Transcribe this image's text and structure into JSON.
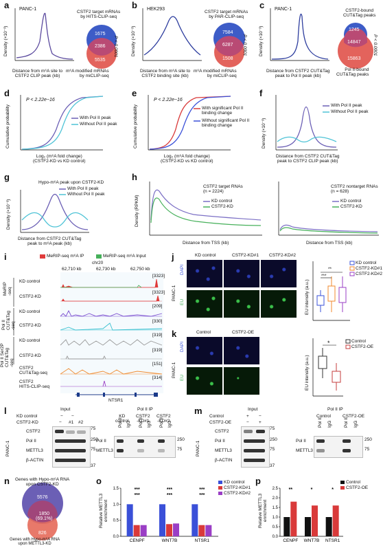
{
  "panels": {
    "a": {
      "label": "a",
      "cell": "PANC-1",
      "ylabel": "Density (×10⁻³)",
      "xlabel": "Distance from m⁶A site to\nCSTF2 CLIP peak (kb)",
      "venn_top": "CSTF2 target mRNAs\nby HITS-CLIP-seq",
      "venn_bottom": "m⁶A modified mRNAs\nby miCLIP-seq",
      "n1": "1675",
      "n2": "2386",
      "n3": "5535",
      "p": "P < 0.0001"
    },
    "b": {
      "label": "b",
      "cell": "HEK293",
      "ylabel": "Density (×10⁻³)",
      "xlabel": "Distance from m⁶A site to\nCSTF2 binding site (kb)",
      "venn_top": "CSTF2 target mRNAs\nby PAR-CLIP-seq",
      "venn_bottom": "m⁶A modified mRNAs\nby miCLIP-seq",
      "n1": "7584",
      "n2": "6287",
      "n3": "1508",
      "p": "P < 0.0001"
    },
    "c": {
      "label": "c",
      "cell": "PANC-1",
      "ylabel": "Density (×10⁻³)",
      "xlabel": "Distance from CSTF2 CUT&Tag\npeak to Pol II peak (kb)",
      "venn_top": "CSTF2-bound\nCUT&Tag peaks",
      "venn_bottom": "Pol II-bound\nCUT&Tag peaks",
      "n1": "1245",
      "n2": "14847",
      "n3": "15863",
      "p": "P < 0.0001"
    },
    "d": {
      "label": "d",
      "p": "P < 2.22e−16",
      "s1": "With Pol II peak",
      "s2": "Without Pol II peak",
      "ylabel": "Cumulative probability",
      "xlabel": "Log₂ (m⁶A fold change)\n(CSTF2-KD vs KD control)"
    },
    "e": {
      "label": "e",
      "p": "P < 2.22e−16",
      "s1": "With significant Pol II\nbinding change",
      "s2": "Without significant Pol II\nbinding change",
      "ylabel": "Cumulative probability",
      "xlabel": "Log₂ (m⁶A fold change)\n(CSTF2-KD vs KD control)"
    },
    "f": {
      "label": "f",
      "s1": "With Pol II peak",
      "s2": "Without Pol II peak",
      "ylabel": "Density (×10⁻³)",
      "xlabel": "Distance from CSTF2 CUT&Tag\npeak to CSTF2 CLIP peak (kb)"
    },
    "g": {
      "label": "g",
      "title": "Hypo-m⁶A peak upon CSTF2-KD",
      "s1": "With Pol II peak",
      "s2": "Without Pol II peak",
      "ylabel": "Density (×10⁻³)",
      "xlabel": "Distance from CSTF2 CUT&Tag\npeak to m⁶A peak (kb)"
    },
    "h": {
      "label": "h",
      "t1": "CSTF2 target RNAs\n(n = 2224)",
      "t2": "CSTF2 nontarget RNAs\n(n = 628)",
      "s1": "KD control",
      "s2": "CSTF2-KD",
      "ylabel": "Density (RPKM)",
      "xlabel": "Distance from TSS (kb)"
    },
    "i": {
      "label": "i",
      "leg1": "MeRIP-seq m⁶A IP",
      "leg2": "MeRIP-seq m⁶A Input",
      "chr": "chr20",
      "pos1": "62,710 kb",
      "pos2": "62,730 kb",
      "pos3": "62,750 kb",
      "gene": "NTSR1",
      "tracks": [
        {
          "group": "MeRIP\n-seq",
          "name": "KD control",
          "range": "[3323]"
        },
        {
          "group": "",
          "name": "CSTF2-KD",
          "range": "[3323]"
        },
        {
          "group": "Pol II\nCUT&Tag\n-seq",
          "name": "KD control",
          "range": "[209]"
        },
        {
          "group": "",
          "name": "CSTF2-KD",
          "range": "[330]"
        },
        {
          "group": "Pol II Ser2P\nCUT&Tag\n-seq",
          "name": "KD control",
          "range": "[319]"
        },
        {
          "group": "",
          "name": "CSTF2-KD",
          "range": "[319]"
        },
        {
          "group": "",
          "name": "CSTF2\nCUT&Tag-seq",
          "range": "[151]"
        },
        {
          "group": "",
          "name": "CSTF2\nHITS-CLIP-seq",
          "range": "[314]"
        }
      ]
    },
    "j": {
      "label": "j",
      "cols": [
        "KD control",
        "CSTF2-KD#1",
        "CSTF2-KD#2"
      ],
      "rows": [
        "DAPI",
        "EU"
      ],
      "cell": "PANC-1",
      "ylabel": "EU intensity (a.u.)",
      "legend": [
        "KD control",
        "CSTF2-KD#1",
        "CSTF2-KD#2"
      ],
      "sig1": "**",
      "sig2": "***"
    },
    "k": {
      "label": "k",
      "cols": [
        "Control",
        "CSTF2-OE"
      ],
      "rows": [
        "DAPI",
        "EU"
      ],
      "cell": "PANC-1",
      "ylabel": "EU intensity (a.u.)",
      "legend": [
        "Control",
        "CSTF2-OE"
      ],
      "sig": "*"
    },
    "l": {
      "label": "l",
      "input": "Input",
      "ip": "Pol II  IP",
      "kdctrl": "KD control",
      "kd": "CSTF2-KD",
      "m": "−",
      "p1": "#1",
      "p2": "#2",
      "cell": "PANC-1",
      "rows": [
        "CSTF2",
        "Pol II",
        "METTL3",
        "β-ACTIN"
      ],
      "mw": [
        "75",
        "250",
        "75",
        "37"
      ],
      "ipcols": [
        "KD\ncontrol",
        "CSTF2\n-KD#1",
        "CSTF2\n-KD#2"
      ],
      "ab": [
        "Pol II",
        "IgG"
      ],
      "iprows": [
        "Pol II",
        "METTL3"
      ],
      "ipmw": [
        "250",
        "75"
      ]
    },
    "m": {
      "label": "m",
      "input": "Input",
      "ip": "Pol II  IP",
      "ctrl": "Control",
      "oe": "CSTF2-OE",
      "plus": "+",
      "m": "−",
      "cell": "PANC-1",
      "rows": [
        "CSTF2",
        "Pol II",
        "METTL3",
        "β-ACTIN"
      ],
      "mw": [
        "75",
        "250",
        "75",
        "37"
      ],
      "ipcols": [
        "Control",
        "CSTF2-OE"
      ],
      "ab": [
        "Pol II",
        "IgG"
      ],
      "iprows": [
        "Pol II",
        "METTL3"
      ],
      "ipmw": [
        "250",
        "75"
      ]
    },
    "n": {
      "label": "n",
      "top": "Genes with Hypo-m⁶A RNA\nupon CSTF2-KD",
      "bottom": "Genes with Hypo-m⁶A RNA\nupon METTL3-KD",
      "n1": "5576",
      "n2": "1850\n(69.1%)",
      "n3": "826"
    },
    "o": {
      "label": "o",
      "ylabel": "Relative METTL3\nenrichment",
      "legend": [
        "KD control",
        "CSTF2-KD#1",
        "CSTF2-KD#2"
      ],
      "sig": "***"
    },
    "p": {
      "label": "p",
      "ylabel": "Relative METTL3\nenrichment",
      "legend": [
        "Control",
        "CSTF2-OE"
      ],
      "sig": [
        "**",
        "*",
        "*"
      ]
    }
  },
  "chart_data": [
    {
      "panel": "o",
      "type": "bar",
      "categories": [
        "CENPF",
        "WNT7B",
        "NTSR1"
      ],
      "ylim": [
        0,
        1.5
      ],
      "series": [
        {
          "name": "KD control",
          "values": [
            1.0,
            1.0,
            1.0
          ]
        },
        {
          "name": "CSTF2-KD#1",
          "values": [
            0.35,
            0.38,
            0.35
          ]
        },
        {
          "name": "CSTF2-KD#2",
          "values": [
            0.35,
            0.4,
            0.35
          ]
        }
      ]
    },
    {
      "panel": "p",
      "type": "bar",
      "categories": [
        "CENPF",
        "WNT7B",
        "NTSR1"
      ],
      "ylim": [
        0,
        2.5
      ],
      "series": [
        {
          "name": "Control",
          "values": [
            1.0,
            1.0,
            1.0
          ]
        },
        {
          "name": "CSTF2-OE",
          "values": [
            1.8,
            1.6,
            1.6
          ]
        }
      ]
    }
  ],
  "colors": {
    "purple": "#6b5fb5",
    "cyan": "#4ec3d6",
    "red": "#d93a3a",
    "blue": "#3a50d8",
    "orange": "#f08a2e",
    "violet": "#9a3ec5",
    "darkred": "#c43c3c",
    "green": "#46b05a"
  }
}
